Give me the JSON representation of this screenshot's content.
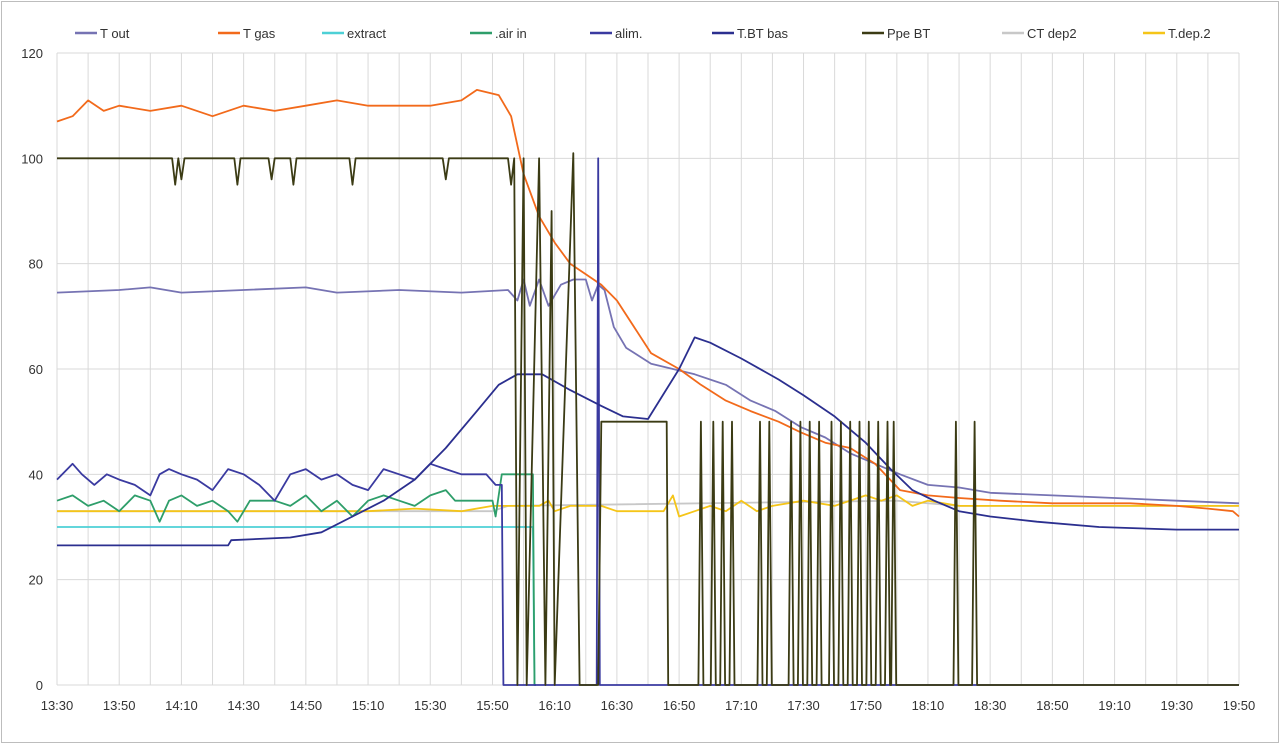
{
  "chart_data": {
    "type": "line",
    "title": "",
    "xlabel": "",
    "ylabel": "",
    "x_unit": "minutes since 13:30",
    "xlim": [
      0,
      380
    ],
    "ylim": [
      0,
      120
    ],
    "y_ticks": [
      0,
      20,
      40,
      60,
      80,
      100,
      120
    ],
    "x_tick_labels": [
      "13:30",
      "13:50",
      "14:10",
      "14:30",
      "14:50",
      "15:10",
      "15:30",
      "15:50",
      "16:10",
      "16:30",
      "16:50",
      "17:10",
      "17:30",
      "17:50",
      "18:10",
      "18:30",
      "18:50",
      "19:10",
      "19:30",
      "19:50"
    ],
    "x_tick_step_minutes": 20,
    "grid": true,
    "legend_position": "top",
    "series": [
      {
        "name": "T out",
        "color": "#7673b3",
        "points": [
          [
            0,
            74.5
          ],
          [
            20,
            75
          ],
          [
            30,
            75.5
          ],
          [
            40,
            74.5
          ],
          [
            60,
            75
          ],
          [
            80,
            75.5
          ],
          [
            90,
            74.5
          ],
          [
            110,
            75
          ],
          [
            130,
            74.5
          ],
          [
            145,
            75
          ],
          [
            148,
            73
          ],
          [
            150,
            77
          ],
          [
            152,
            72
          ],
          [
            155,
            77
          ],
          [
            158,
            72
          ],
          [
            162,
            76
          ],
          [
            166,
            77
          ],
          [
            170,
            77
          ],
          [
            172,
            73
          ],
          [
            174,
            76
          ],
          [
            176,
            75
          ],
          [
            179,
            68
          ],
          [
            183,
            64
          ],
          [
            191,
            61
          ],
          [
            198,
            60
          ],
          [
            205,
            59
          ],
          [
            215,
            57
          ],
          [
            223,
            54
          ],
          [
            231,
            52
          ],
          [
            239,
            49
          ],
          [
            247,
            47
          ],
          [
            255,
            44
          ],
          [
            263,
            42
          ],
          [
            271,
            40
          ],
          [
            280,
            38
          ],
          [
            290,
            37.5
          ],
          [
            300,
            36.5
          ],
          [
            320,
            36
          ],
          [
            340,
            35.5
          ],
          [
            360,
            35
          ],
          [
            380,
            34.5
          ]
        ]
      },
      {
        "name": "T gas",
        "color": "#f26a1b",
        "points": [
          [
            0,
            107
          ],
          [
            5,
            108
          ],
          [
            10,
            111
          ],
          [
            15,
            109
          ],
          [
            20,
            110
          ],
          [
            30,
            109
          ],
          [
            40,
            110
          ],
          [
            50,
            108
          ],
          [
            60,
            110
          ],
          [
            70,
            109
          ],
          [
            80,
            110
          ],
          [
            90,
            111
          ],
          [
            100,
            110
          ],
          [
            120,
            110
          ],
          [
            130,
            111
          ],
          [
            135,
            113
          ],
          [
            142,
            112
          ],
          [
            146,
            108
          ],
          [
            150,
            97
          ],
          [
            155,
            89
          ],
          [
            160,
            84
          ],
          [
            165,
            80
          ],
          [
            170,
            78
          ],
          [
            175,
            76
          ],
          [
            180,
            73
          ],
          [
            191,
            63
          ],
          [
            200,
            60
          ],
          [
            207,
            57
          ],
          [
            215,
            54
          ],
          [
            223,
            52
          ],
          [
            232,
            50
          ],
          [
            239,
            48
          ],
          [
            247,
            46
          ],
          [
            255,
            45
          ],
          [
            263,
            42
          ],
          [
            271,
            37
          ],
          [
            280,
            36
          ],
          [
            290,
            35.5
          ],
          [
            303,
            35
          ],
          [
            320,
            34.5
          ],
          [
            345,
            34.5
          ],
          [
            360,
            34
          ],
          [
            370,
            33.5
          ],
          [
            378,
            33
          ],
          [
            380,
            32
          ]
        ]
      },
      {
        "name": "extract",
        "color": "#4dd0d6",
        "points": [
          [
            0,
            30
          ],
          [
            153,
            30
          ],
          [
            153.5,
            0
          ],
          [
            154,
            0
          ]
        ]
      },
      {
        "name": ".air in",
        "color": "#2e9e6a",
        "points": [
          [
            0,
            35
          ],
          [
            5,
            36
          ],
          [
            10,
            34
          ],
          [
            15,
            35
          ],
          [
            20,
            33
          ],
          [
            25,
            36
          ],
          [
            30,
            35
          ],
          [
            33,
            31
          ],
          [
            36,
            35
          ],
          [
            40,
            36
          ],
          [
            45,
            34
          ],
          [
            50,
            35
          ],
          [
            55,
            33
          ],
          [
            58,
            31
          ],
          [
            62,
            35
          ],
          [
            70,
            35
          ],
          [
            75,
            34
          ],
          [
            80,
            36
          ],
          [
            85,
            33
          ],
          [
            90,
            35
          ],
          [
            95,
            32
          ],
          [
            100,
            35
          ],
          [
            105,
            36
          ],
          [
            110,
            35
          ],
          [
            115,
            34
          ],
          [
            120,
            36
          ],
          [
            125,
            37
          ],
          [
            128,
            35
          ],
          [
            140,
            35
          ],
          [
            141,
            32
          ],
          [
            143,
            40
          ],
          [
            153,
            40
          ],
          [
            153.5,
            0
          ],
          [
            154,
            0
          ]
        ]
      },
      {
        "name": "alim.",
        "color": "#3a3aa0",
        "points": [
          [
            0,
            39
          ],
          [
            5,
            42
          ],
          [
            8,
            40
          ],
          [
            12,
            38
          ],
          [
            16,
            40
          ],
          [
            20,
            39
          ],
          [
            25,
            38
          ],
          [
            30,
            36
          ],
          [
            33,
            40
          ],
          [
            36,
            41
          ],
          [
            40,
            40
          ],
          [
            45,
            39
          ],
          [
            50,
            37
          ],
          [
            55,
            41
          ],
          [
            60,
            40
          ],
          [
            65,
            38
          ],
          [
            70,
            35
          ],
          [
            75,
            40
          ],
          [
            80,
            41
          ],
          [
            85,
            39
          ],
          [
            90,
            40
          ],
          [
            95,
            38
          ],
          [
            100,
            37
          ],
          [
            105,
            41
          ],
          [
            110,
            40
          ],
          [
            115,
            39
          ],
          [
            120,
            42
          ],
          [
            125,
            41
          ],
          [
            130,
            40
          ],
          [
            138,
            40
          ],
          [
            141,
            38
          ],
          [
            143,
            38
          ],
          [
            143.5,
            0
          ],
          [
            173.5,
            0
          ],
          [
            174,
            100
          ],
          [
            174.5,
            0
          ],
          [
            380,
            0
          ]
        ]
      },
      {
        "name": "T.BT bas",
        "color": "#2b2f8f",
        "points": [
          [
            0,
            26.5
          ],
          [
            55,
            26.5
          ],
          [
            56,
            27.5
          ],
          [
            75,
            28
          ],
          [
            85,
            29
          ],
          [
            95,
            32
          ],
          [
            105,
            35
          ],
          [
            115,
            39
          ],
          [
            125,
            45
          ],
          [
            135,
            52
          ],
          [
            142,
            57
          ],
          [
            148,
            59
          ],
          [
            156,
            59
          ],
          [
            165,
            56
          ],
          [
            175,
            53
          ],
          [
            182,
            51
          ],
          [
            190,
            50.5
          ],
          [
            200,
            60
          ],
          [
            205,
            66
          ],
          [
            210,
            65
          ],
          [
            220,
            62
          ],
          [
            232,
            58
          ],
          [
            240,
            55
          ],
          [
            250,
            51
          ],
          [
            260,
            46
          ],
          [
            268,
            41
          ],
          [
            275,
            37
          ],
          [
            282,
            35
          ],
          [
            290,
            33
          ],
          [
            300,
            32
          ],
          [
            315,
            31
          ],
          [
            335,
            30
          ],
          [
            360,
            29.5
          ],
          [
            380,
            29.5
          ]
        ]
      },
      {
        "name": "Ppe BT",
        "color": "#3b3b14",
        "points": [
          [
            0,
            100
          ],
          [
            37,
            100
          ],
          [
            38,
            95
          ],
          [
            39,
            100
          ],
          [
            40,
            96
          ],
          [
            41,
            100
          ],
          [
            57,
            100
          ],
          [
            58,
            95
          ],
          [
            59,
            100
          ],
          [
            68,
            100
          ],
          [
            69,
            96
          ],
          [
            70,
            100
          ],
          [
            75,
            100
          ],
          [
            76,
            95
          ],
          [
            77,
            100
          ],
          [
            94,
            100
          ],
          [
            95,
            95
          ],
          [
            96,
            100
          ],
          [
            124,
            100
          ],
          [
            125,
            96
          ],
          [
            126,
            100
          ],
          [
            145,
            100
          ],
          [
            146,
            95
          ],
          [
            147,
            100
          ],
          [
            148,
            0
          ],
          [
            150,
            100
          ],
          [
            151,
            0
          ],
          [
            155,
            100
          ],
          [
            157,
            0
          ],
          [
            159,
            90
          ],
          [
            160,
            0
          ],
          [
            166,
            101
          ],
          [
            168,
            0
          ],
          [
            174,
            0
          ],
          [
            175,
            50
          ],
          [
            196,
            50
          ],
          [
            196.5,
            0
          ],
          [
            380,
            0
          ]
        ],
        "spikes_to_50": [
          207,
          211,
          214,
          217,
          226,
          229,
          236,
          239,
          242,
          245,
          249,
          252,
          255,
          258,
          261,
          264,
          267,
          269,
          289,
          295
        ]
      },
      {
        "name": "CT  dep2",
        "color": "#c8c8c8",
        "points": [
          [
            0,
            33
          ],
          [
            140,
            33
          ],
          [
            145,
            34
          ],
          [
            270,
            35
          ],
          [
            290,
            34
          ],
          [
            380,
            34
          ]
        ]
      },
      {
        "name": "T.dep.2",
        "color": "#f5c518",
        "points": [
          [
            0,
            33
          ],
          [
            100,
            33
          ],
          [
            115,
            33.5
          ],
          [
            130,
            33
          ],
          [
            140,
            34
          ],
          [
            155,
            34
          ],
          [
            158,
            35
          ],
          [
            160,
            33
          ],
          [
            165,
            34
          ],
          [
            175,
            34
          ],
          [
            180,
            33
          ],
          [
            195,
            33
          ],
          [
            198,
            36
          ],
          [
            200,
            32
          ],
          [
            205,
            33
          ],
          [
            210,
            34
          ],
          [
            215,
            33
          ],
          [
            220,
            35
          ],
          [
            225,
            33
          ],
          [
            230,
            34
          ],
          [
            240,
            35
          ],
          [
            250,
            34
          ],
          [
            260,
            36
          ],
          [
            265,
            35
          ],
          [
            270,
            36
          ],
          [
            275,
            34
          ],
          [
            280,
            35
          ],
          [
            290,
            34
          ],
          [
            300,
            34
          ],
          [
            380,
            34
          ]
        ]
      }
    ]
  }
}
